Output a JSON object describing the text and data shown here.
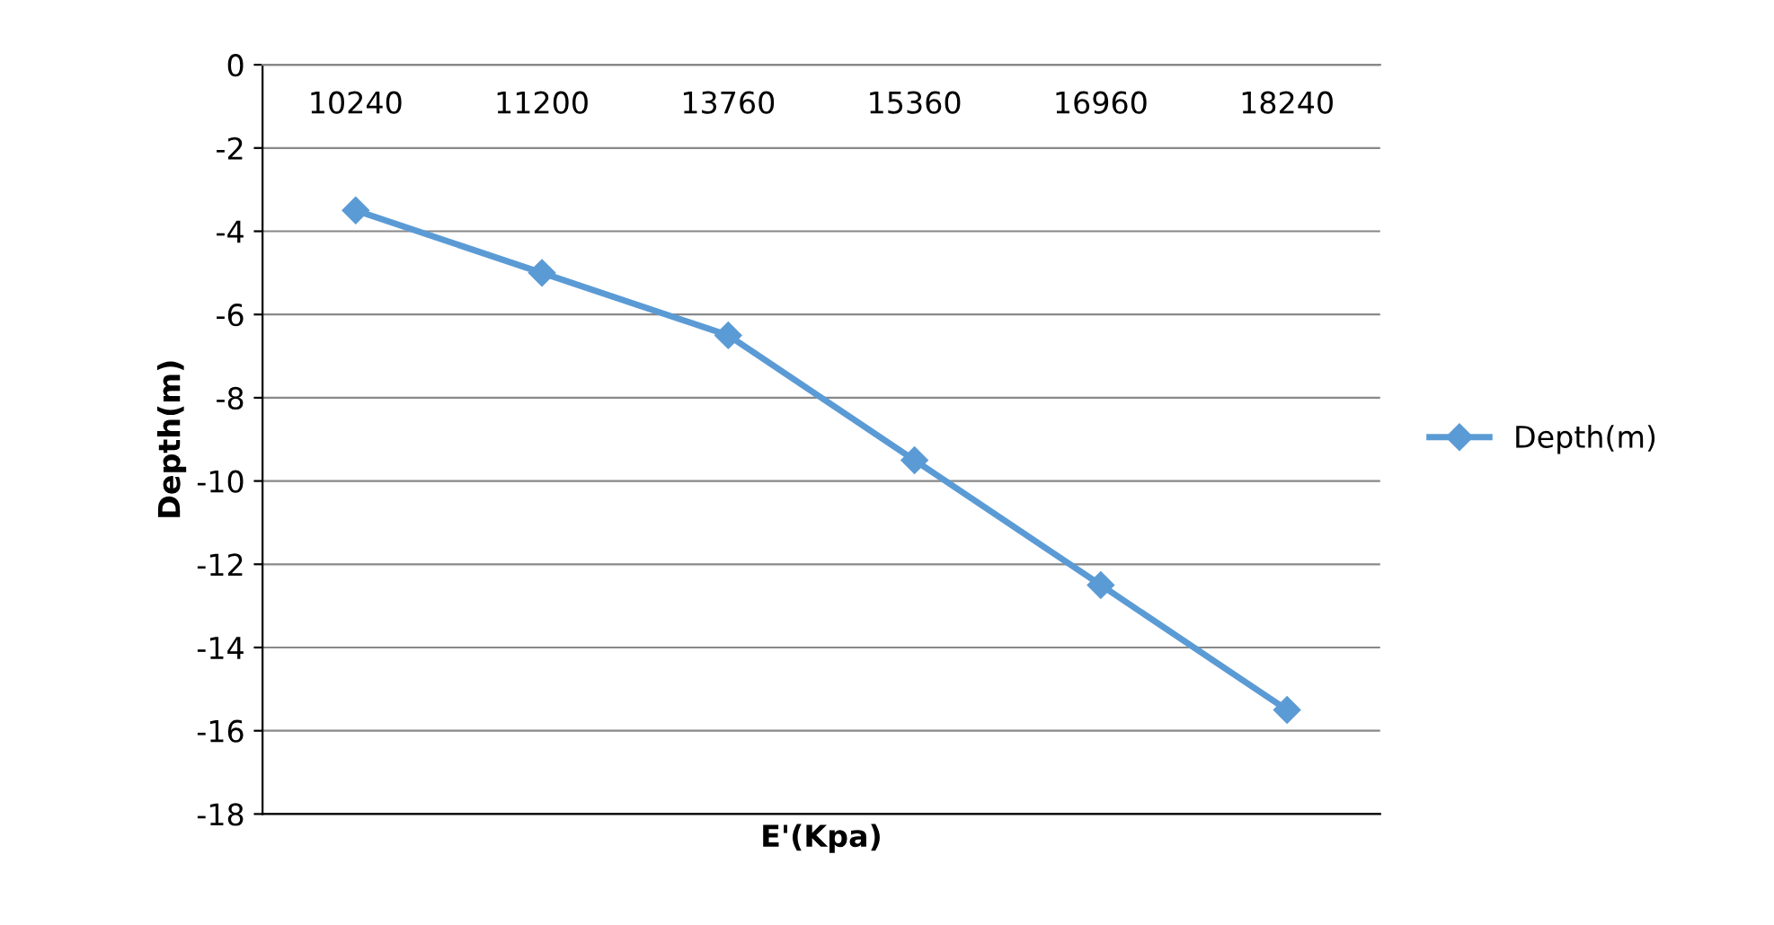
{
  "chart_data": {
    "type": "line",
    "xlabel": "E'(Kpa)",
    "ylabel": "Depth(m)",
    "categories": [
      "10240",
      "11200",
      "13760",
      "15360",
      "16960",
      "18240"
    ],
    "series": [
      {
        "name": "Depth(m)",
        "color": "#5b9bd5",
        "values": [
          -3.5,
          -5,
          -6.5,
          -9.5,
          -12.5,
          -15.5
        ]
      }
    ],
    "ylim": [
      -18,
      0
    ],
    "yticks": [
      -18,
      -16,
      -14,
      -12,
      -10,
      -8,
      -6,
      -4,
      -2,
      0
    ],
    "grid": "y",
    "legend": "right",
    "marker": "diamond",
    "line_style": "solid"
  }
}
